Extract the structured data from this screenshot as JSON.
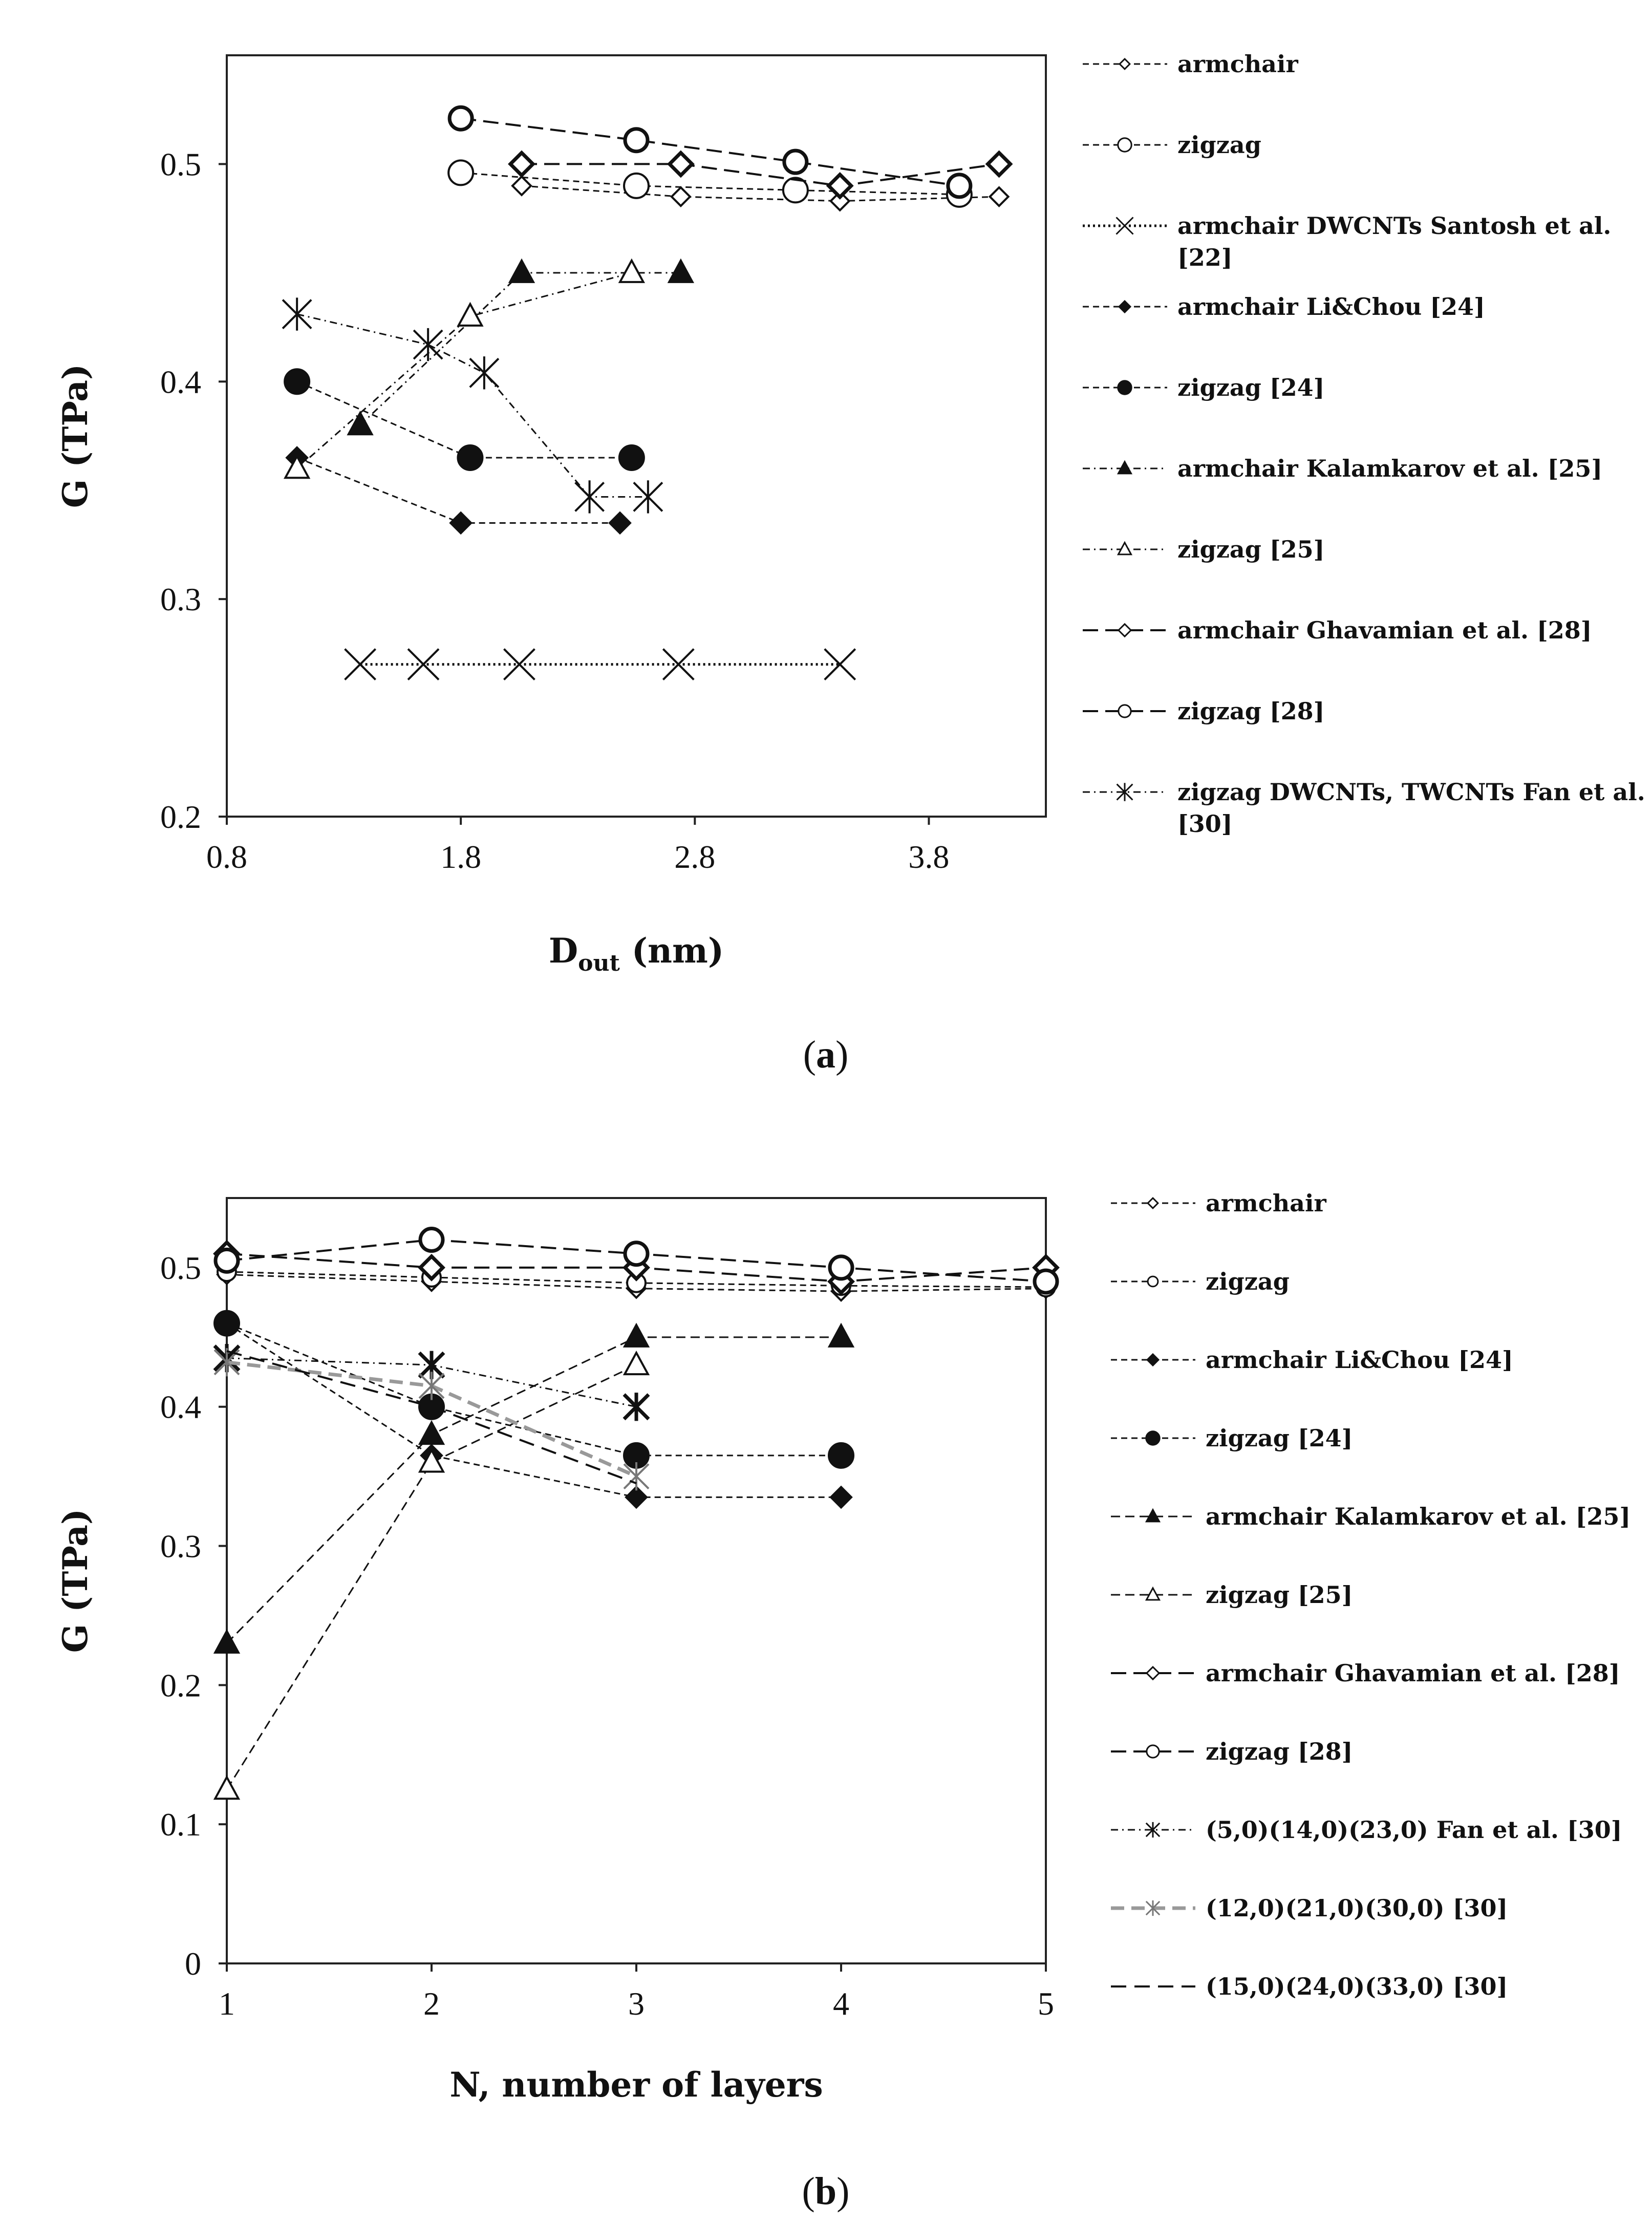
{
  "chart_data": [
    {
      "id": "a",
      "type": "line",
      "caption": "(a)",
      "caption_letter": "a",
      "xlabel_main": "D",
      "xlabel_sub": "out",
      "xlabel_unit": " (nm)",
      "ylabel": "G (TPa)",
      "xlim": [
        0.8,
        4.3
      ],
      "ylim": [
        0.2,
        0.55
      ],
      "xticks": [
        0.8,
        1.8,
        2.8,
        3.8
      ],
      "xtick_labels": [
        "0.8",
        "1.8",
        "2.8",
        "3.8"
      ],
      "yticks": [
        0.2,
        0.3,
        0.4,
        0.5
      ],
      "ytick_labels": [
        "0.2",
        "0.3",
        "0.4",
        "0.5"
      ],
      "series": [
        {
          "name": "armchair",
          "legend": [
            "armchair"
          ],
          "dash": "12,8",
          "width": 3,
          "color": "#111111",
          "marker": "diamond",
          "fill": "none",
          "size": 18,
          "x": [
            2.06,
            2.74,
            3.42,
            4.1
          ],
          "y": [
            0.49,
            0.485,
            0.483,
            0.485
          ]
        },
        {
          "name": "zigzag",
          "legend": [
            "zigzag"
          ],
          "dash": "12,8",
          "width": 3,
          "color": "#111111",
          "marker": "circle",
          "fill": "none",
          "size": 24,
          "x": [
            1.8,
            2.55,
            3.23,
            3.93
          ],
          "y": [
            0.496,
            0.49,
            0.488,
            0.486
          ]
        },
        {
          "name": "armchair DWCNTs Santosh et al. [22]",
          "legend": [
            "armchair DWCNTs Santosh et al.",
            "[22]"
          ],
          "dash": "4,6",
          "width": 5,
          "color": "#111111",
          "marker": "x",
          "fill": "none",
          "size": 30,
          "x": [
            1.37,
            1.64,
            2.05,
            2.73,
            3.42
          ],
          "y": [
            0.27,
            0.27,
            0.27,
            0.27,
            0.27
          ]
        },
        {
          "name": "armchair Li&Chou [24]",
          "legend": [
            "armchair Li&Chou [24]"
          ],
          "dash": "12,8",
          "width": 3,
          "color": "#111111",
          "marker": "diamond",
          "fill": "#111111",
          "size": 20,
          "x": [
            1.1,
            1.8,
            2.48
          ],
          "y": [
            0.365,
            0.335,
            0.335
          ]
        },
        {
          "name": "zigzag [24]",
          "legend": [
            "zigzag [24]"
          ],
          "dash": "12,8",
          "width": 3,
          "color": "#111111",
          "marker": "circle",
          "fill": "#111111",
          "size": 24,
          "x": [
            1.1,
            1.84,
            2.53
          ],
          "y": [
            0.4,
            0.365,
            0.365
          ]
        },
        {
          "name": "armchair Kalamkarov et al. [25]",
          "legend": [
            "armchair Kalamkarov et al. [25]"
          ],
          "dash": "14,8,3,8",
          "width": 3,
          "color": "#111111",
          "marker": "triangle",
          "fill": "#111111",
          "size": 24,
          "x": [
            1.37,
            2.06,
            2.74
          ],
          "y": [
            0.38,
            0.45,
            0.45
          ]
        },
        {
          "name": "zigzag [25]",
          "legend": [
            "zigzag [25]"
          ],
          "dash": "14,8,3,8",
          "width": 3,
          "color": "#111111",
          "marker": "triangle",
          "fill": "none",
          "size": 24,
          "x": [
            1.1,
            1.84,
            2.53
          ],
          "y": [
            0.36,
            0.43,
            0.45
          ]
        },
        {
          "name": "armchair Ghavamian et al. [28]",
          "legend": [
            "armchair Ghavamian et al. [28]"
          ],
          "dash": "30,14",
          "width": 4,
          "color": "#111111",
          "marker": "diamond",
          "fill": "none",
          "size": 22,
          "bold": true,
          "x": [
            2.06,
            2.74,
            3.42,
            4.1
          ],
          "y": [
            0.5,
            0.5,
            0.49,
            0.5
          ]
        },
        {
          "name": "zigzag [28]",
          "legend": [
            "zigzag [28]"
          ],
          "dash": "30,14",
          "width": 4,
          "color": "#111111",
          "marker": "circle",
          "fill": "none",
          "size": 22,
          "bold": true,
          "x": [
            1.8,
            2.55,
            3.23,
            3.93
          ],
          "y": [
            0.521,
            0.511,
            0.501,
            0.49
          ]
        },
        {
          "name": "zigzag DWCNTs, TWCNTs Fan et al. [30]",
          "legend": [
            "zigzag DWCNTs, TWCNTs Fan et al.",
            "[30]"
          ],
          "dash": "14,8,3,8",
          "width": 3,
          "color": "#111111",
          "marker": "star",
          "fill": "none",
          "size": 28,
          "x": [
            1.1,
            1.66,
            1.9,
            2.35,
            2.6
          ],
          "y": [
            0.431,
            0.417,
            0.404,
            0.347,
            0.347
          ]
        }
      ]
    },
    {
      "id": "b",
      "type": "line",
      "caption": "(b)",
      "caption_letter": "b",
      "xlabel": "N, number of layers",
      "ylabel": "G (TPa)",
      "xlim": [
        1,
        5
      ],
      "ylim": [
        0,
        0.55
      ],
      "xticks": [
        1,
        2,
        3,
        4,
        5
      ],
      "xtick_labels": [
        "1",
        "2",
        "3",
        "4",
        "5"
      ],
      "yticks": [
        0,
        0.1,
        0.2,
        0.3,
        0.4,
        0.5
      ],
      "ytick_labels": [
        "0",
        "0.1",
        "0.2",
        "0.3",
        "0.4",
        "0.5"
      ],
      "series": [
        {
          "name": "armchair",
          "legend": [
            "armchair"
          ],
          "dash": "12,8",
          "width": 3,
          "color": "#111111",
          "marker": "diamond",
          "fill": "none",
          "size": 18,
          "x": [
            1,
            2,
            3,
            4,
            5
          ],
          "y": [
            0.495,
            0.49,
            0.485,
            0.483,
            0.485
          ]
        },
        {
          "name": "zigzag",
          "legend": [
            "zigzag"
          ],
          "dash": "12,8",
          "width": 3,
          "color": "#111111",
          "marker": "circle",
          "fill": "none",
          "size": 18,
          "x": [
            1,
            2,
            3,
            4,
            5
          ],
          "y": [
            0.497,
            0.493,
            0.489,
            0.487,
            0.486
          ]
        },
        {
          "name": "armchair Li&Chou [24]",
          "legend": [
            "armchair Li&Chou [24]"
          ],
          "dash": "12,8",
          "width": 3,
          "color": "#111111",
          "marker": "diamond",
          "fill": "#111111",
          "size": 20,
          "x": [
            1,
            2,
            3,
            4
          ],
          "y": [
            0.46,
            0.365,
            0.335,
            0.335
          ]
        },
        {
          "name": "zigzag [24]",
          "legend": [
            "zigzag [24]"
          ],
          "dash": "12,8",
          "width": 3,
          "color": "#111111",
          "marker": "circle",
          "fill": "#111111",
          "size": 24,
          "x": [
            1,
            2,
            3,
            4
          ],
          "y": [
            0.46,
            0.4,
            0.365,
            0.365
          ]
        },
        {
          "name": "armchair Kalamkarov et al. [25]",
          "legend": [
            "armchair Kalamkarov et al. [25]"
          ],
          "dash": "18,10",
          "width": 3,
          "color": "#111111",
          "marker": "triangle",
          "fill": "#111111",
          "size": 24,
          "x": [
            1,
            2,
            3,
            4
          ],
          "y": [
            0.23,
            0.38,
            0.45,
            0.45
          ]
        },
        {
          "name": "zigzag [25]",
          "legend": [
            "zigzag [25]"
          ],
          "dash": "18,10",
          "width": 3,
          "color": "#111111",
          "marker": "triangle",
          "fill": "none",
          "size": 24,
          "x": [
            1,
            2,
            3
          ],
          "y": [
            0.125,
            0.36,
            0.43
          ]
        },
        {
          "name": "armchair Ghavamian et al. [28]",
          "legend": [
            "armchair Ghavamian et al. [28]"
          ],
          "dash": "30,14",
          "width": 4,
          "color": "#111111",
          "marker": "diamond",
          "fill": "none",
          "size": 22,
          "bold": true,
          "x": [
            1,
            2,
            3,
            4,
            5
          ],
          "y": [
            0.51,
            0.5,
            0.5,
            0.49,
            0.5
          ]
        },
        {
          "name": "zigzag [28]",
          "legend": [
            "zigzag [28]"
          ],
          "dash": "30,14",
          "width": 4,
          "color": "#111111",
          "marker": "circle",
          "fill": "none",
          "size": 22,
          "bold": true,
          "x": [
            1,
            2,
            3,
            4,
            5
          ],
          "y": [
            0.505,
            0.52,
            0.51,
            0.5,
            0.49
          ]
        },
        {
          "name": "(5,0)(14,0)(23,0) Fan et al. [30]",
          "legend": [
            "(5,0)(14,0)(23,0) Fan et al. [30]"
          ],
          "dash": "14,8,3,8",
          "width": 3,
          "color": "#111111",
          "marker": "star",
          "fill": "none",
          "size": 24,
          "bold": true,
          "x": [
            1,
            2,
            3
          ],
          "y": [
            0.435,
            0.43,
            0.4
          ]
        },
        {
          "name": "(12,0)(21,0)(30,0) [30]",
          "legend": [
            "(12,0)(21,0)(30,0) [30]"
          ],
          "dash": "26,14",
          "width": 7,
          "color": "#999999",
          "marker": "star",
          "fill": "none",
          "size": 24,
          "x": [
            1,
            2,
            3
          ],
          "y": [
            0.432,
            0.415,
            0.35
          ]
        },
        {
          "name": "(15,0)(24,0)(33,0) [30]",
          "legend": [
            "(15,0)(24,0)(33,0) [30]"
          ],
          "dash": "30,16",
          "width": 4,
          "color": "#111111",
          "marker": "none",
          "fill": "none",
          "size": 0,
          "x": [
            1,
            2,
            3
          ],
          "y": [
            0.44,
            0.4,
            0.345
          ]
        }
      ]
    }
  ]
}
